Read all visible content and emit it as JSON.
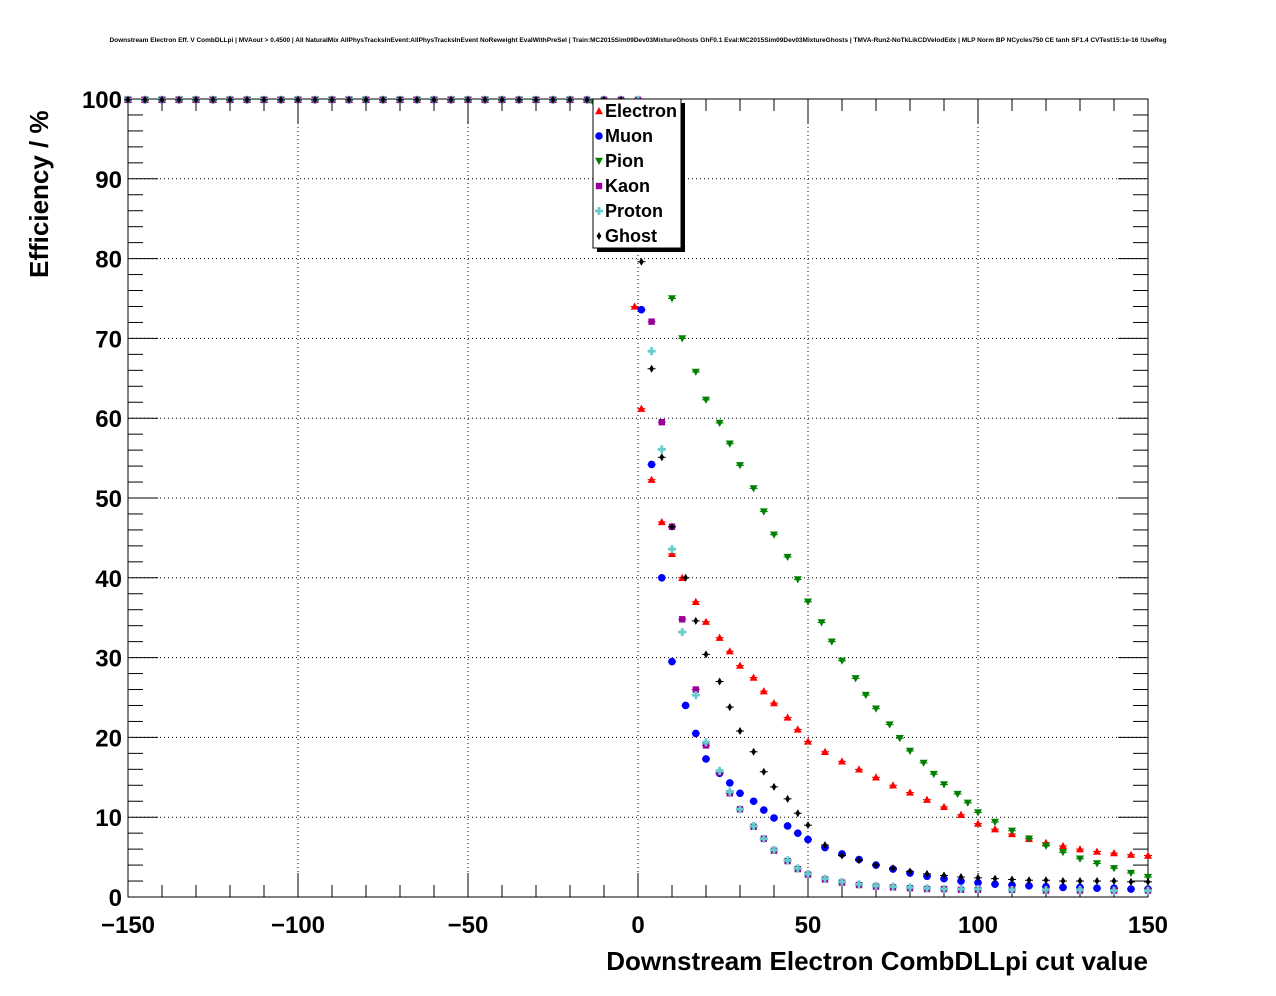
{
  "chart_data": {
    "type": "scatter",
    "title": "Downstream Electron Eff. V CombDLLpi | MVAout > 0.4500 | All NaturalMix AllPhysTracksInEvent:AllPhysTracksInEvent NoReweight EvalWithPreSel | Train:MC2015Sim09Dev03MixtureGhosts GhF0.1 Eval:MC2015Sim09Dev03MixtureGhosts | TMVA-Run2-NoTkLikCDVelodEdx | MLP Norm BP NCycles750 CE tanh SF1.4 CVTest15:1e-16 !UseReg",
    "xlabel": "Downstream Electron CombDLLpi cut value",
    "ylabel": "Efficiency / %",
    "xlim": [
      -150,
      150
    ],
    "ylim": [
      0,
      100
    ],
    "x_ticks": [
      "−150",
      "−100",
      "−50",
      "0",
      "50",
      "100",
      "150"
    ],
    "y_ticks": [
      "0",
      "10",
      "20",
      "30",
      "40",
      "50",
      "60",
      "70",
      "80",
      "90",
      "100"
    ],
    "grid": true,
    "legend_position": "top-center",
    "series": [
      {
        "name": "Electron",
        "color": "#ff0000",
        "marker": "triangle-up",
        "x": [
          -1,
          1,
          4,
          7,
          10,
          13,
          17,
          20,
          24,
          27,
          30,
          34,
          37,
          40,
          44,
          47,
          50,
          55,
          60,
          65,
          70,
          75,
          80,
          85,
          90,
          95,
          100,
          105,
          110,
          115,
          120,
          125,
          130,
          135,
          140,
          145,
          150
        ],
        "y": [
          74,
          61.2,
          52.3,
          47,
          43,
          40,
          37,
          34.5,
          32.5,
          30.8,
          29,
          27.5,
          25.8,
          24.3,
          22.5,
          21,
          19.5,
          18.2,
          17,
          16,
          15,
          14,
          13.1,
          12.2,
          11.3,
          10.3,
          9.2,
          8.5,
          7.9,
          7.3,
          6.8,
          6.4,
          6.0,
          5.7,
          5.5,
          5.3,
          5.2
        ]
      },
      {
        "name": "Muon",
        "color": "#0000ff",
        "marker": "circle",
        "x": [
          1,
          4,
          7,
          10,
          14,
          17,
          20,
          24,
          27,
          30,
          34,
          37,
          40,
          44,
          47,
          50,
          55,
          60,
          65,
          70,
          75,
          80,
          85,
          90,
          95,
          100,
          105,
          110,
          115,
          120,
          125,
          130,
          135,
          140,
          145,
          150
        ],
        "y": [
          73.6,
          54.2,
          40,
          29.5,
          24,
          20.5,
          17.3,
          15.5,
          14.3,
          13,
          12,
          10.9,
          9.9,
          8.9,
          8,
          7.2,
          6.2,
          5.4,
          4.7,
          4.0,
          3.5,
          3.0,
          2.6,
          2.3,
          2.0,
          1.8,
          1.6,
          1.5,
          1.4,
          1.3,
          1.2,
          1.2,
          1.1,
          1.1,
          1.0,
          1.0
        ]
      },
      {
        "name": "Pion",
        "color": "#008000",
        "marker": "triangle-down",
        "x": [
          -13,
          0,
          10,
          13,
          17,
          20,
          24,
          27,
          30,
          34,
          37,
          40,
          44,
          47,
          50,
          54,
          57,
          60,
          64,
          67,
          70,
          74,
          77,
          80,
          84,
          87,
          90,
          94,
          97,
          100,
          105,
          110,
          115,
          120,
          125,
          130,
          135,
          140,
          145,
          150
        ],
        "y": [
          99.5,
          95,
          75,
          70,
          65.8,
          62.3,
          59.4,
          56.8,
          54.1,
          51.2,
          48.3,
          45.4,
          42.6,
          39.8,
          37,
          34.4,
          32,
          29.6,
          27.4,
          25.3,
          23.6,
          21.6,
          19.9,
          18.3,
          16.8,
          15.4,
          14.1,
          12.9,
          11.8,
          10.6,
          9.4,
          8.3,
          7.3,
          6.4,
          5.6,
          4.8,
          4.2,
          3.6,
          3.0,
          2.5
        ]
      },
      {
        "name": "Kaon",
        "color": "#990099",
        "marker": "square",
        "x": [
          4,
          7,
          10,
          13,
          17,
          20,
          24,
          27,
          30,
          34,
          37,
          40,
          44,
          47,
          50,
          55,
          60,
          65,
          70,
          75,
          80,
          85,
          90,
          95,
          100,
          110,
          120,
          130,
          140,
          150
        ],
        "y": [
          72.1,
          59.5,
          46.4,
          34.8,
          26,
          19,
          15.6,
          13,
          11,
          8.8,
          7.3,
          5.8,
          4.5,
          3.5,
          2.8,
          2.2,
          1.8,
          1.5,
          1.3,
          1.2,
          1.1,
          1.0,
          1.0,
          0.9,
          0.9,
          0.9,
          0.8,
          0.8,
          0.8,
          0.8
        ]
      },
      {
        "name": "Proton",
        "color": "#66cccc",
        "marker": "cross",
        "x": [
          4,
          7,
          10,
          13,
          17,
          20,
          24,
          27,
          30,
          34,
          37,
          40,
          44,
          47,
          50,
          55,
          60,
          65,
          70,
          75,
          80,
          85,
          90,
          95,
          100,
          110,
          120,
          130,
          140,
          150
        ],
        "y": [
          68.4,
          56.1,
          43.6,
          33.2,
          25.3,
          19.4,
          15.8,
          13.2,
          11.0,
          8.9,
          7.3,
          5.9,
          4.6,
          3.6,
          2.9,
          2.3,
          1.9,
          1.6,
          1.4,
          1.3,
          1.2,
          1.1,
          1.0,
          1.0,
          1.0,
          0.9,
          0.9,
          0.9,
          0.8,
          0.8
        ]
      },
      {
        "name": "Ghost",
        "color": "#000000",
        "marker": "diamond",
        "x": [
          1,
          4,
          7,
          10,
          14,
          17,
          20,
          24,
          27,
          30,
          34,
          37,
          40,
          44,
          47,
          50,
          55,
          60,
          65,
          70,
          75,
          80,
          85,
          90,
          95,
          100,
          105,
          110,
          115,
          120,
          125,
          130,
          135,
          140,
          145,
          150
        ],
        "y": [
          79.6,
          66.2,
          55.1,
          46.4,
          40,
          34.6,
          30.4,
          27,
          23.8,
          20.8,
          18.2,
          15.7,
          13.8,
          12.3,
          10.5,
          9.0,
          6.5,
          5.2,
          4.6,
          4.0,
          3.6,
          3.2,
          2.9,
          2.7,
          2.5,
          2.4,
          2.3,
          2.2,
          2.1,
          2.1,
          2.0,
          2.0,
          2.0,
          2.0,
          1.9,
          1.9
        ]
      }
    ]
  }
}
